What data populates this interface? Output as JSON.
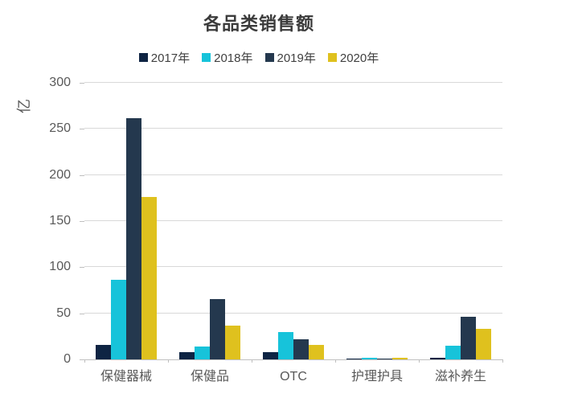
{
  "chart_data": {
    "type": "bar",
    "title": "各品类销售额",
    "ylabel": "亿",
    "categories": [
      "保健器械",
      "保健品",
      "OTC",
      "护理护具",
      "滋补养生"
    ],
    "series": [
      {
        "name": "2017年",
        "color": "#0e2443",
        "values": [
          16,
          8,
          8,
          0.5,
          1.5
        ]
      },
      {
        "name": "2018年",
        "color": "#17c3da",
        "values": [
          86,
          14,
          30,
          1.5,
          15
        ]
      },
      {
        "name": "2019年",
        "color": "#24384e",
        "values": [
          262,
          65,
          22,
          0.5,
          46
        ]
      },
      {
        "name": "2020年",
        "color": "#dfc11e",
        "values": [
          176,
          37,
          16,
          1.5,
          33
        ]
      }
    ],
    "ylim": [
      0,
      300
    ],
    "yticks": [
      0,
      50,
      100,
      150,
      200,
      250,
      300
    ],
    "grid": true,
    "legend_position": "top",
    "colors": {
      "grid": "#d9d9d9",
      "axis": "#bfbfbf",
      "tick_text": "#595959",
      "title_text": "#3b3b3b",
      "legend_text": "#404040",
      "background": "#ffffff"
    }
  }
}
